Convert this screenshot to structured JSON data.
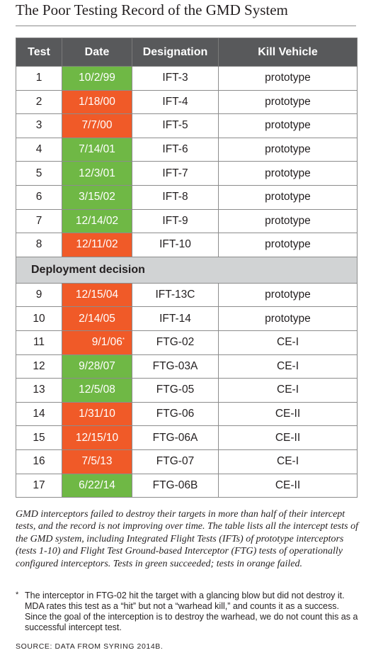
{
  "title": "The Poor Testing Record of the GMD System",
  "table": {
    "headers": [
      "Test",
      "Date",
      "Designation",
      "Kill Vehicle"
    ],
    "rows_before": [
      {
        "test": "1",
        "date": "10/2/99",
        "designation": "IFT-3",
        "kill_vehicle": "prototype",
        "result": "success"
      },
      {
        "test": "2",
        "date": "1/18/00",
        "designation": "IFT-4",
        "kill_vehicle": "prototype",
        "result": "failure"
      },
      {
        "test": "3",
        "date": "7/7/00",
        "designation": "IFT-5",
        "kill_vehicle": "prototype",
        "result": "failure"
      },
      {
        "test": "4",
        "date": "7/14/01",
        "designation": "IFT-6",
        "kill_vehicle": "prototype",
        "result": "success"
      },
      {
        "test": "5",
        "date": "12/3/01",
        "designation": "IFT-7",
        "kill_vehicle": "prototype",
        "result": "success"
      },
      {
        "test": "6",
        "date": "3/15/02",
        "designation": "IFT-8",
        "kill_vehicle": "prototype",
        "result": "success"
      },
      {
        "test": "7",
        "date": "12/14/02",
        "designation": "IFT-9",
        "kill_vehicle": "prototype",
        "result": "success"
      },
      {
        "test": "8",
        "date": "12/11/02",
        "designation": "IFT-10",
        "kill_vehicle": "prototype",
        "result": "failure"
      }
    ],
    "section_label": "Deployment decision",
    "rows_after": [
      {
        "test": "9",
        "date": "12/15/04",
        "designation": "IFT-13C",
        "kill_vehicle": "prototype",
        "result": "failure"
      },
      {
        "test": "10",
        "date": "2/14/05",
        "designation": "IFT-14",
        "kill_vehicle": "prototype",
        "result": "failure"
      },
      {
        "test": "11",
        "date": "9/1/06",
        "date_mark": "*",
        "designation": "FTG-02",
        "kill_vehicle": "CE-I",
        "result": "failure"
      },
      {
        "test": "12",
        "date": "9/28/07",
        "designation": "FTG-03A",
        "kill_vehicle": "CE-I",
        "result": "success"
      },
      {
        "test": "13",
        "date": "12/5/08",
        "designation": "FTG-05",
        "kill_vehicle": "CE-I",
        "result": "success"
      },
      {
        "test": "14",
        "date": "1/31/10",
        "designation": "FTG-06",
        "kill_vehicle": "CE-II",
        "result": "failure"
      },
      {
        "test": "15",
        "date": "12/15/10",
        "designation": "FTG-06A",
        "kill_vehicle": "CE-II",
        "result": "failure"
      },
      {
        "test": "16",
        "date": "7/5/13",
        "designation": "FTG-07",
        "kill_vehicle": "CE-I",
        "result": "failure"
      },
      {
        "test": "17",
        "date": "6/22/14",
        "designation": "FTG-06B",
        "kill_vehicle": "CE-II",
        "result": "success"
      }
    ]
  },
  "colors": {
    "success": "#6fb845",
    "failure": "#f05a28",
    "header_bg": "#58595b",
    "section_bg": "#d1d3d4"
  },
  "caption": "GMD interceptors failed to destroy their targets in more than half of their intercept tests, and the record is not improving over time. The table lists all the intercept tests of the GMD system, including Integrated Flight Tests (IFTs) of prototype interceptors (tests 1-10) and Flight Test Ground-based Interceptor (FTG) tests of operationally configured interceptors. Tests in green succeeded; tests in orange failed.",
  "footnote": {
    "marker": "*",
    "text": "The interceptor in FTG-02 hit the target with a glancing blow but did not destroy it. MDA rates this test as a “hit” but not a “warhead kill,” and counts it as a success. Since the goal of the interception is to destroy the warhead, we do not count this as a successful intercept test."
  },
  "source": "SOURCE: DATA FROM SYRING 2014B."
}
